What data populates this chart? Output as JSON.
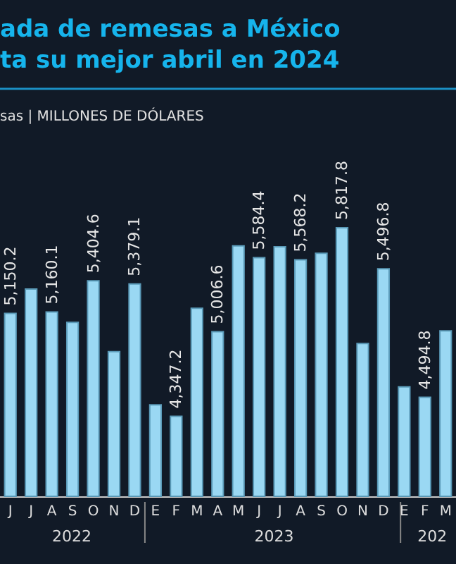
{
  "chart_data": {
    "type": "bar",
    "title": "ada de remesas a México\nta su mejor abril en 2024",
    "subtitle": "sas | MILLONES DE DÓLARES",
    "categories": [
      "J",
      "J",
      "A",
      "S",
      "O",
      "N",
      "D",
      "E",
      "F",
      "M",
      "A",
      "M",
      "J",
      "J",
      "A",
      "S",
      "O",
      "N",
      "D",
      "E",
      "F",
      "M"
    ],
    "values": [
      5150.2,
      5339,
      5160.1,
      5079,
      5404.6,
      4851,
      5379.1,
      4436,
      4347.2,
      5189,
      5006.6,
      5676,
      5584.4,
      5669,
      5568.2,
      5618,
      5817.8,
      4914,
      5496.8,
      4576,
      4494.8,
      5013
    ],
    "value_labels": [
      "5,150.2",
      null,
      "5,160.1",
      null,
      "5,404.6",
      null,
      "5,379.1",
      null,
      "4,347.2",
      null,
      "5,006.6",
      null,
      "5,584.4",
      null,
      "5,568.2",
      null,
      "5,817.8",
      null,
      "5,496.8",
      null,
      "4,494.8",
      null
    ],
    "color": "#9ad8f3",
    "ylim": [
      3717,
      5817.8
    ],
    "annotations": [
      "2022",
      "2023",
      "202"
    ]
  }
}
